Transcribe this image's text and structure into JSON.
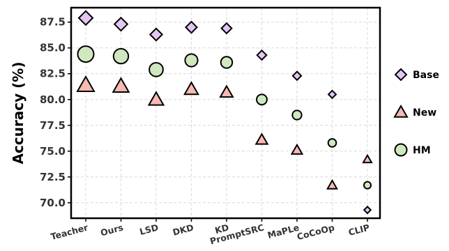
{
  "chart_data": {
    "type": "scatter",
    "title": "",
    "xlabel": "",
    "ylabel": "Accuracy (%)",
    "categories": [
      "Teacher",
      "Ours",
      "LSD",
      "DKD",
      "KD",
      "PromptSRC",
      "MaPLe",
      "CoCoOp",
      "CLIP"
    ],
    "ylim": [
      68.5,
      88.9
    ],
    "yticks": [
      70.0,
      72.5,
      75.0,
      77.5,
      80.0,
      82.5,
      85.0,
      87.5
    ],
    "ytick_labels": [
      "70.0",
      "72.5",
      "75.0",
      "77.5",
      "80.0",
      "82.5",
      "85.0",
      "87.5"
    ],
    "grid": true,
    "legend_position": "right",
    "series": [
      {
        "name": "Base",
        "marker": "diamond",
        "color": "#e3c6f3",
        "values": [
          87.9,
          87.3,
          86.3,
          87.0,
          86.9,
          84.3,
          82.3,
          80.5,
          69.3
        ]
      },
      {
        "name": "New",
        "marker": "triangle",
        "color": "#f6b9b3",
        "values": [
          81.4,
          81.3,
          80.0,
          81.0,
          80.7,
          76.1,
          75.1,
          71.7,
          74.2
        ]
      },
      {
        "name": "HM",
        "marker": "circle",
        "color": "#cfe8bf",
        "values": [
          84.4,
          84.2,
          82.9,
          83.8,
          83.6,
          80.0,
          78.5,
          75.8,
          71.7
        ]
      }
    ]
  }
}
